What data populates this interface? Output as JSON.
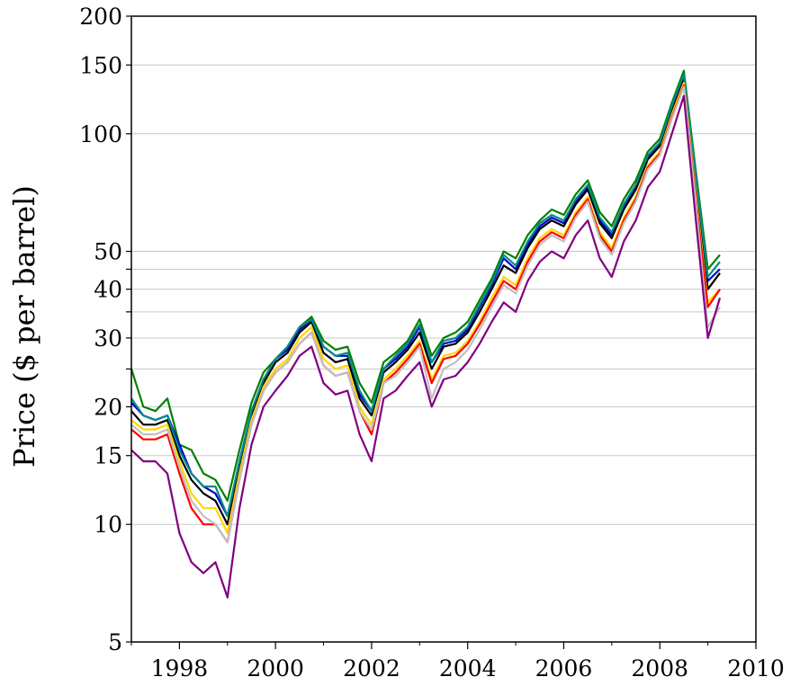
{
  "chart_data": {
    "type": "line",
    "title": "",
    "xlabel": "",
    "ylabel": "Price ($ per barrel)",
    "y_scale": "log",
    "xlim": [
      1997.0,
      2010.0
    ],
    "ylim": [
      5,
      200
    ],
    "x_ticks": [
      1998,
      2000,
      2002,
      2004,
      2006,
      2008,
      2010
    ],
    "x_tick_labels": [
      "1998",
      "2000",
      "2002",
      "2004",
      "2006",
      "2008",
      "2010"
    ],
    "y_ticks": [
      5,
      10,
      15,
      20,
      30,
      40,
      50,
      100,
      150,
      200
    ],
    "y_tick_labels": [
      "5",
      "10",
      "15",
      "20",
      "30",
      "40",
      "50",
      "100",
      "150",
      "200"
    ],
    "gridlines_unlabeled": [
      25,
      35,
      45
    ],
    "grid": "horizontal",
    "legend": "none",
    "x": [
      1997.0,
      1997.25,
      1997.5,
      1997.75,
      1998.0,
      1998.25,
      1998.5,
      1998.75,
      1999.0,
      1999.25,
      1999.5,
      1999.75,
      2000.0,
      2000.25,
      2000.5,
      2000.75,
      2001.0,
      2001.25,
      2001.5,
      2001.75,
      2002.0,
      2002.25,
      2002.5,
      2002.75,
      2003.0,
      2003.25,
      2003.5,
      2003.75,
      2004.0,
      2004.25,
      2004.5,
      2004.75,
      2005.0,
      2005.25,
      2005.5,
      2005.75,
      2006.0,
      2006.25,
      2006.5,
      2006.75,
      2007.0,
      2007.25,
      2007.5,
      2007.75,
      2008.0,
      2008.25,
      2008.5,
      2008.75,
      2009.0,
      2009.25
    ],
    "series": [
      {
        "color": "#008000",
        "values": [
          25.0,
          20.0,
          19.5,
          21.0,
          16.0,
          15.5,
          13.5,
          13.0,
          11.5,
          15.5,
          20.5,
          24.5,
          26.5,
          28.5,
          32.0,
          34.0,
          29.5,
          28.0,
          28.5,
          23.0,
          20.5,
          26.0,
          27.5,
          29.5,
          33.5,
          27.0,
          30.0,
          31.0,
          33.0,
          37.5,
          42.5,
          50.0,
          48.0,
          55.0,
          60.0,
          64.0,
          62.0,
          70.0,
          76.0,
          63.0,
          58.0,
          68.0,
          76.0,
          90.0,
          97.0,
          120.0,
          145.0,
          80.0,
          45.0,
          49.0
        ]
      },
      {
        "color": "#0000cc",
        "values": [
          20.5,
          19.0,
          18.5,
          19.0,
          16.0,
          13.5,
          12.5,
          12.0,
          10.5,
          14.5,
          19.5,
          23.5,
          26.5,
          28.0,
          31.5,
          33.5,
          28.5,
          27.0,
          27.0,
          21.5,
          19.5,
          25.0,
          26.5,
          28.5,
          32.0,
          26.0,
          29.0,
          29.5,
          31.5,
          36.0,
          41.0,
          48.0,
          45.0,
          52.0,
          58.0,
          61.0,
          59.0,
          67.0,
          73.0,
          60.0,
          55.0,
          65.0,
          73.0,
          87.0,
          94.0,
          116.0,
          140.0,
          76.0,
          42.0,
          45.0
        ]
      },
      {
        "color": "#000000",
        "values": [
          19.5,
          18.0,
          18.0,
          18.5,
          15.0,
          13.0,
          12.0,
          11.5,
          10.0,
          14.0,
          19.0,
          23.0,
          26.0,
          27.5,
          31.0,
          33.0,
          27.5,
          26.0,
          26.5,
          21.0,
          19.0,
          24.5,
          26.0,
          28.0,
          31.0,
          25.0,
          28.5,
          29.0,
          31.0,
          35.0,
          40.0,
          46.0,
          44.0,
          51.0,
          57.0,
          60.0,
          58.0,
          66.0,
          72.0,
          59.0,
          54.0,
          64.0,
          72.0,
          86.0,
          93.0,
          115.0,
          138.0,
          74.0,
          40.0,
          44.0
        ]
      },
      {
        "color": "#008b8b",
        "values": [
          21.0,
          19.0,
          18.5,
          19.0,
          15.5,
          13.5,
          12.5,
          12.5,
          10.5,
          14.5,
          19.5,
          23.5,
          26.5,
          28.5,
          32.0,
          33.5,
          28.5,
          27.0,
          27.5,
          22.0,
          19.5,
          25.0,
          27.0,
          29.0,
          32.5,
          26.0,
          29.5,
          30.0,
          32.0,
          36.5,
          41.5,
          49.0,
          46.0,
          53.0,
          59.0,
          62.0,
          60.0,
          68.0,
          74.0,
          61.0,
          56.0,
          66.0,
          74.0,
          88.0,
          95.0,
          118.0,
          142.0,
          78.0,
          43.0,
          47.0
        ]
      },
      {
        "color": "#ffd700",
        "values": [
          18.5,
          17.5,
          17.5,
          18.0,
          14.5,
          12.0,
          11.0,
          11.0,
          9.5,
          13.5,
          18.5,
          22.5,
          25.0,
          26.5,
          30.0,
          32.0,
          26.5,
          25.0,
          25.5,
          20.0,
          18.0,
          23.5,
          25.0,
          27.0,
          29.5,
          23.5,
          27.0,
          27.5,
          29.5,
          33.0,
          38.0,
          43.0,
          41.0,
          48.0,
          54.0,
          57.0,
          55.0,
          63.0,
          69.0,
          56.0,
          51.0,
          61.0,
          69.0,
          83.0,
          90.0,
          112.0,
          135.0,
          70.0,
          37.0,
          40.0
        ]
      },
      {
        "color": "#ff0000",
        "values": [
          17.5,
          16.5,
          16.5,
          17.0,
          13.5,
          11.0,
          10.0,
          10.0,
          9.0,
          13.0,
          18.0,
          22.0,
          24.5,
          26.0,
          29.0,
          31.0,
          25.5,
          24.0,
          24.5,
          19.5,
          17.0,
          23.0,
          24.5,
          26.5,
          29.0,
          23.0,
          26.5,
          27.0,
          29.0,
          32.5,
          37.0,
          42.0,
          40.0,
          47.0,
          53.0,
          56.0,
          54.0,
          62.0,
          68.0,
          55.0,
          50.0,
          60.0,
          68.0,
          82.0,
          89.0,
          110.0,
          133.0,
          68.0,
          36.0,
          40.0
        ]
      },
      {
        "color": "#c0c0c0",
        "values": [
          18.0,
          17.0,
          17.0,
          17.5,
          14.0,
          11.5,
          10.5,
          10.0,
          9.0,
          13.0,
          18.0,
          22.0,
          24.5,
          26.0,
          29.0,
          31.0,
          25.5,
          24.0,
          24.5,
          19.5,
          17.5,
          23.0,
          24.0,
          26.0,
          28.5,
          21.0,
          25.0,
          26.0,
          28.0,
          31.5,
          36.0,
          41.0,
          39.0,
          46.0,
          52.0,
          55.0,
          53.0,
          61.0,
          67.0,
          54.0,
          49.0,
          59.0,
          67.0,
          81.0,
          88.0,
          109.0,
          132.0,
          66.0,
          32.0,
          36.0
        ]
      },
      {
        "color": "#800080",
        "values": [
          15.5,
          14.5,
          14.5,
          13.5,
          9.5,
          8.0,
          7.5,
          8.0,
          6.5,
          11.0,
          16.0,
          20.0,
          22.0,
          24.0,
          27.0,
          28.5,
          23.0,
          21.5,
          22.0,
          17.0,
          14.5,
          21.0,
          22.0,
          24.0,
          26.0,
          20.0,
          23.5,
          24.0,
          26.0,
          29.0,
          33.0,
          37.0,
          35.0,
          42.0,
          47.0,
          50.0,
          48.0,
          55.0,
          60.0,
          48.0,
          43.0,
          53.0,
          60.0,
          73.0,
          80.0,
          100.0,
          125.0,
          60.0,
          30.0,
          38.0
        ]
      }
    ]
  }
}
